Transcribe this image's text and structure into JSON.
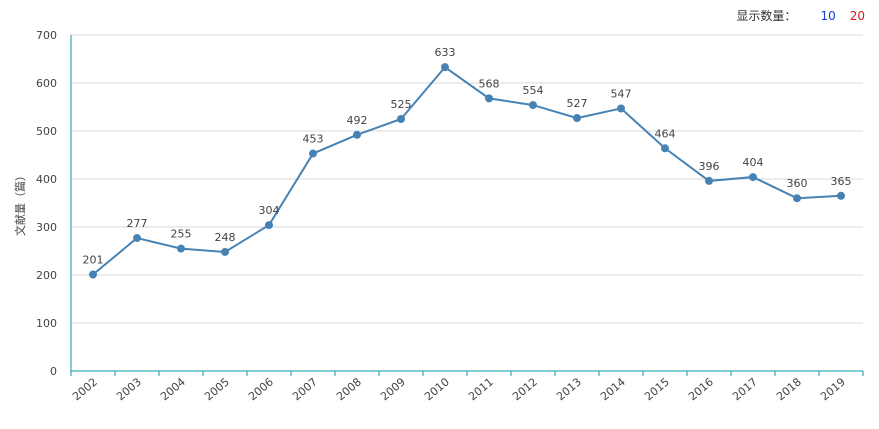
{
  "controls": {
    "display_label": "显示数量：",
    "option_10": "10",
    "option_20": "20"
  },
  "chart_data": {
    "type": "line",
    "ylabel": "文献量（篇）",
    "ylim": [
      0,
      700
    ],
    "yticks": [
      0,
      100,
      200,
      300,
      400,
      500,
      600,
      700
    ],
    "x": [
      "2002",
      "2003",
      "2004",
      "2005",
      "2006",
      "2007",
      "2008",
      "2009",
      "2010",
      "2011",
      "2012",
      "2013",
      "2014",
      "2015",
      "2016",
      "2017",
      "2018",
      "2019"
    ],
    "series": [
      {
        "values": [
          201,
          277,
          255,
          248,
          304,
          453,
          492,
          525,
          633,
          568,
          554,
          527,
          547,
          464,
          396,
          404,
          360,
          365
        ]
      }
    ],
    "grid": true,
    "colors": {
      "line": "#4682b4",
      "axis": "#0e9aa7",
      "grid": "#d9d9d9"
    }
  }
}
